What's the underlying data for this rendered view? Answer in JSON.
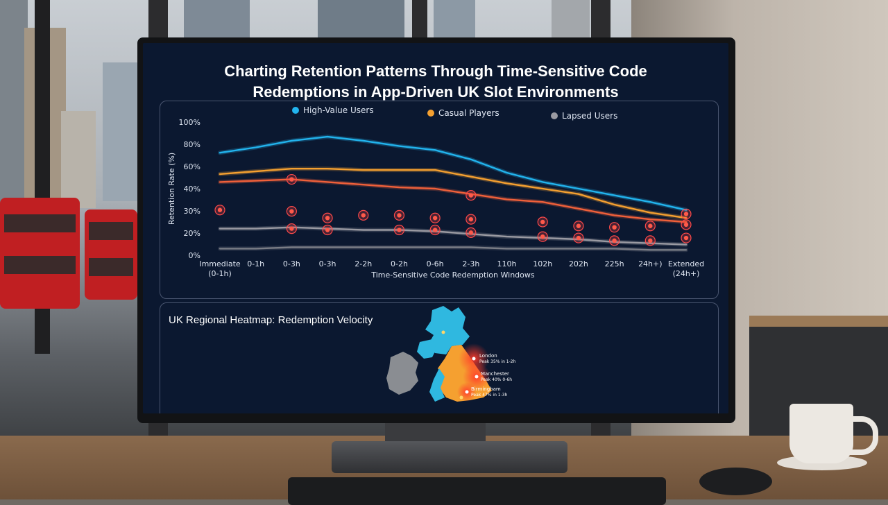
{
  "screen": {
    "title_line1": "Charting Retention Patterns Through Time-Sensitive Code",
    "title_line2": "Redemptions in App-Driven UK Slot Environments"
  },
  "chart_data": {
    "type": "line",
    "ylabel": "Retention Rate (%)",
    "xlabel": "Time-Sensitive Code Redemption Windows",
    "ylim": [
      0,
      100
    ],
    "y_ticks": [
      "0%",
      "20%",
      "30%",
      "40%",
      "60%",
      "80%",
      "100%"
    ],
    "categories": [
      "Immediate (0-1h)",
      "0-1h",
      "0-3h",
      "0-3h",
      "2-2h",
      "0-2h",
      "0-6h",
      "2-3h",
      "110h",
      "102h",
      "202h",
      "225h",
      "24h+)",
      "Extended (24h+)"
    ],
    "legend_position": "top",
    "grid": false,
    "series": [
      {
        "name": "High-Value Users",
        "color": "#22b4ee",
        "values": [
          77,
          81,
          86,
          89,
          86,
          82,
          79,
          72,
          62,
          55,
          50,
          45,
          40,
          34
        ]
      },
      {
        "name": "Casual Players",
        "color": "#f5a030",
        "values": [
          61,
          63,
          65,
          65,
          64,
          64,
          64,
          59,
          54,
          50,
          46,
          38,
          32,
          28
        ]
      },
      {
        "name": "",
        "color": "#f0603a",
        "values": [
          55,
          56,
          57,
          55,
          53,
          51,
          50,
          46,
          42,
          40,
          35,
          30,
          27,
          25
        ]
      },
      {
        "name": "Lapsed Users",
        "color": "#9a9aa2",
        "values": [
          20,
          20,
          21,
          20,
          19,
          19,
          18,
          16,
          14,
          13,
          12,
          10,
          9,
          8
        ]
      },
      {
        "name": "",
        "color": "#7a7d86",
        "values": [
          5,
          5,
          6,
          6,
          6,
          6,
          6,
          6,
          5,
          5,
          5,
          5,
          4,
          4
        ]
      }
    ],
    "highlight_points": [
      {
        "x": 0,
        "y": 34
      },
      {
        "x": 2,
        "y": 33
      },
      {
        "x": 3,
        "y": 28
      },
      {
        "x": 4,
        "y": 30
      },
      {
        "x": 5,
        "y": 30
      },
      {
        "x": 6,
        "y": 28
      },
      {
        "x": 7,
        "y": 27
      },
      {
        "x": 9,
        "y": 25
      },
      {
        "x": 10,
        "y": 22
      },
      {
        "x": 11,
        "y": 21
      },
      {
        "x": 12,
        "y": 22
      },
      {
        "x": 13,
        "y": 31
      },
      {
        "x": 2,
        "y": 20
      },
      {
        "x": 3,
        "y": 19
      },
      {
        "x": 5,
        "y": 19
      },
      {
        "x": 6,
        "y": 19
      },
      {
        "x": 7,
        "y": 17
      },
      {
        "x": 9,
        "y": 14
      },
      {
        "x": 10,
        "y": 13
      },
      {
        "x": 11,
        "y": 11
      },
      {
        "x": 12,
        "y": 11
      },
      {
        "x": 13,
        "y": 13
      },
      {
        "x": 2,
        "y": 57
      },
      {
        "x": 7,
        "y": 45
      },
      {
        "x": 13,
        "y": 23
      }
    ]
  },
  "map_panel": {
    "title": "UK Regional Heatmap: Redemption Velocity",
    "callouts": [
      "London",
      "Peak 35% in 1-2h",
      "Manchester",
      "Peak 40% 0-6h",
      "Birmingham",
      "Peak 47% in 1-3h"
    ],
    "colors": {
      "cool": "#2fb8e0",
      "warm": "#f5a030",
      "hot": "#f04a2a",
      "ireland": "#8a8d92"
    }
  }
}
